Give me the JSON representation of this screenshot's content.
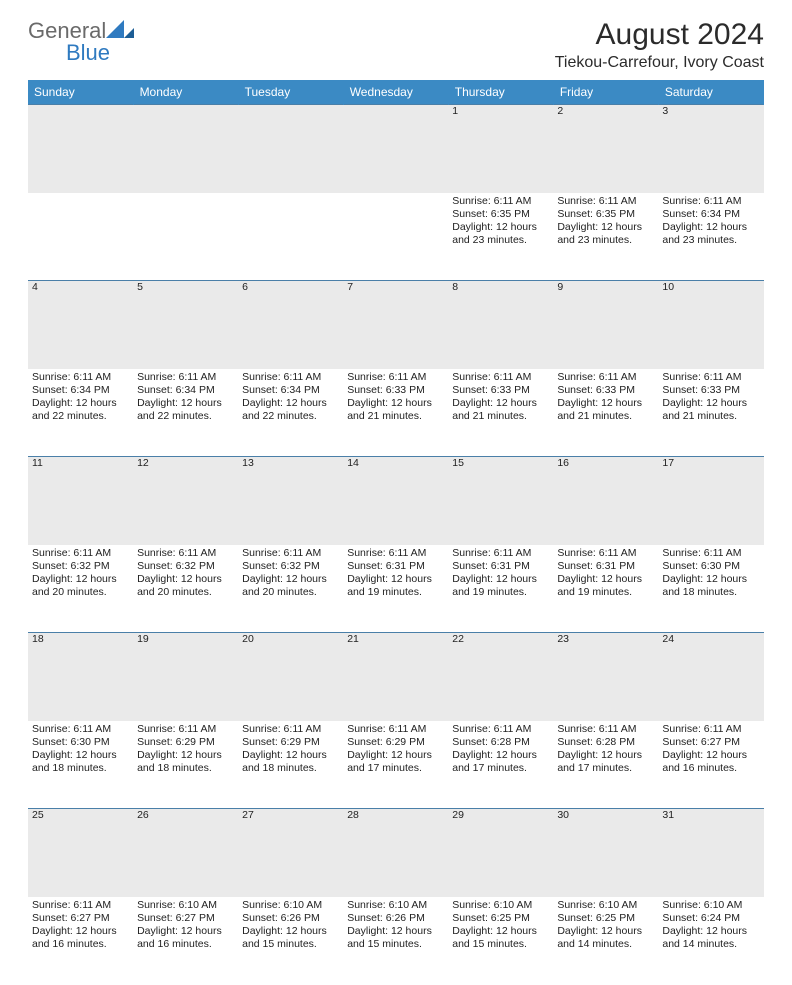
{
  "brand": {
    "name1": "General",
    "name2": "Blue",
    "accent": "#2f7ac0",
    "gray": "#6a6a6a"
  },
  "title": "August 2024",
  "location": "Tiekou-Carrefour, Ivory Coast",
  "header_bg": "#3b8ac4",
  "header_fg": "#ffffff",
  "daynum_bg": "#eaeaea",
  "row_border": "#4a7fa8",
  "weekdays": [
    "Sunday",
    "Monday",
    "Tuesday",
    "Wednesday",
    "Thursday",
    "Friday",
    "Saturday"
  ],
  "weeks": [
    {
      "nums": [
        "",
        "",
        "",
        "",
        "1",
        "2",
        "3"
      ],
      "cells": [
        "",
        "",
        "",
        "",
        "Sunrise: 6:11 AM\nSunset: 6:35 PM\nDaylight: 12 hours and 23 minutes.",
        "Sunrise: 6:11 AM\nSunset: 6:35 PM\nDaylight: 12 hours and 23 minutes.",
        "Sunrise: 6:11 AM\nSunset: 6:34 PM\nDaylight: 12 hours and 23 minutes."
      ]
    },
    {
      "nums": [
        "4",
        "5",
        "6",
        "7",
        "8",
        "9",
        "10"
      ],
      "cells": [
        "Sunrise: 6:11 AM\nSunset: 6:34 PM\nDaylight: 12 hours and 22 minutes.",
        "Sunrise: 6:11 AM\nSunset: 6:34 PM\nDaylight: 12 hours and 22 minutes.",
        "Sunrise: 6:11 AM\nSunset: 6:34 PM\nDaylight: 12 hours and 22 minutes.",
        "Sunrise: 6:11 AM\nSunset: 6:33 PM\nDaylight: 12 hours and 21 minutes.",
        "Sunrise: 6:11 AM\nSunset: 6:33 PM\nDaylight: 12 hours and 21 minutes.",
        "Sunrise: 6:11 AM\nSunset: 6:33 PM\nDaylight: 12 hours and 21 minutes.",
        "Sunrise: 6:11 AM\nSunset: 6:33 PM\nDaylight: 12 hours and 21 minutes."
      ]
    },
    {
      "nums": [
        "11",
        "12",
        "13",
        "14",
        "15",
        "16",
        "17"
      ],
      "cells": [
        "Sunrise: 6:11 AM\nSunset: 6:32 PM\nDaylight: 12 hours and 20 minutes.",
        "Sunrise: 6:11 AM\nSunset: 6:32 PM\nDaylight: 12 hours and 20 minutes.",
        "Sunrise: 6:11 AM\nSunset: 6:32 PM\nDaylight: 12 hours and 20 minutes.",
        "Sunrise: 6:11 AM\nSunset: 6:31 PM\nDaylight: 12 hours and 19 minutes.",
        "Sunrise: 6:11 AM\nSunset: 6:31 PM\nDaylight: 12 hours and 19 minutes.",
        "Sunrise: 6:11 AM\nSunset: 6:31 PM\nDaylight: 12 hours and 19 minutes.",
        "Sunrise: 6:11 AM\nSunset: 6:30 PM\nDaylight: 12 hours and 18 minutes."
      ]
    },
    {
      "nums": [
        "18",
        "19",
        "20",
        "21",
        "22",
        "23",
        "24"
      ],
      "cells": [
        "Sunrise: 6:11 AM\nSunset: 6:30 PM\nDaylight: 12 hours and 18 minutes.",
        "Sunrise: 6:11 AM\nSunset: 6:29 PM\nDaylight: 12 hours and 18 minutes.",
        "Sunrise: 6:11 AM\nSunset: 6:29 PM\nDaylight: 12 hours and 18 minutes.",
        "Sunrise: 6:11 AM\nSunset: 6:29 PM\nDaylight: 12 hours and 17 minutes.",
        "Sunrise: 6:11 AM\nSunset: 6:28 PM\nDaylight: 12 hours and 17 minutes.",
        "Sunrise: 6:11 AM\nSunset: 6:28 PM\nDaylight: 12 hours and 17 minutes.",
        "Sunrise: 6:11 AM\nSunset: 6:27 PM\nDaylight: 12 hours and 16 minutes."
      ]
    },
    {
      "nums": [
        "25",
        "26",
        "27",
        "28",
        "29",
        "30",
        "31"
      ],
      "cells": [
        "Sunrise: 6:11 AM\nSunset: 6:27 PM\nDaylight: 12 hours and 16 minutes.",
        "Sunrise: 6:10 AM\nSunset: 6:27 PM\nDaylight: 12 hours and 16 minutes.",
        "Sunrise: 6:10 AM\nSunset: 6:26 PM\nDaylight: 12 hours and 15 minutes.",
        "Sunrise: 6:10 AM\nSunset: 6:26 PM\nDaylight: 12 hours and 15 minutes.",
        "Sunrise: 6:10 AM\nSunset: 6:25 PM\nDaylight: 12 hours and 15 minutes.",
        "Sunrise: 6:10 AM\nSunset: 6:25 PM\nDaylight: 12 hours and 14 minutes.",
        "Sunrise: 6:10 AM\nSunset: 6:24 PM\nDaylight: 12 hours and 14 minutes."
      ]
    }
  ]
}
